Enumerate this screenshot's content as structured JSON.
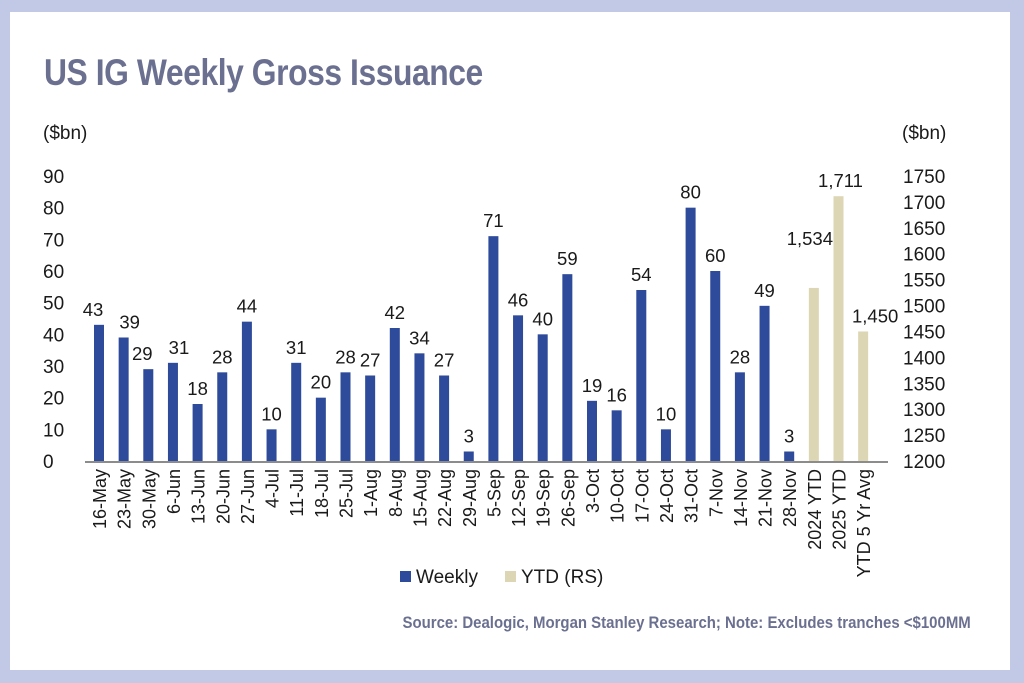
{
  "header": {
    "title": "US IG Weekly Gross Issuance"
  },
  "footer": {
    "source": "Source: Dealogic, Morgan Stanley Research; Note: Excludes tranches <$100MM"
  },
  "colors": {
    "weekly": "#2e4a9a",
    "ytd": "#ddd6b4",
    "title": "#6b7090",
    "frame": "#c2c9e6",
    "axis": "#8c8c8c"
  },
  "chart_data": {
    "type": "bar",
    "title": "US IG Weekly Gross Issuance",
    "left_axis": {
      "label": "($bn)",
      "ylim": [
        0,
        90
      ],
      "ticks": [
        0,
        10,
        20,
        30,
        40,
        50,
        60,
        70,
        80,
        90
      ]
    },
    "right_axis": {
      "label": "($bn)",
      "ylim": [
        1200,
        1750
      ],
      "ticks": [
        1200,
        1250,
        1300,
        1350,
        1400,
        1450,
        1500,
        1550,
        1600,
        1650,
        1700,
        1750
      ]
    },
    "grid": false,
    "legend_position": "bottom-center",
    "series": [
      {
        "name": "Weekly",
        "axis": "left",
        "categories": [
          "16-May",
          "23-May",
          "30-May",
          "6-Jun",
          "13-Jun",
          "20-Jun",
          "27-Jun",
          "4-Jul",
          "11-Jul",
          "18-Jul",
          "25-Jul",
          "1-Aug",
          "8-Aug",
          "15-Aug",
          "22-Aug",
          "29-Aug",
          "5-Sep",
          "12-Sep",
          "19-Sep",
          "26-Sep",
          "3-Oct",
          "10-Oct",
          "17-Oct",
          "24-Oct",
          "31-Oct",
          "7-Nov",
          "14-Nov",
          "21-Nov",
          "28-Nov"
        ],
        "values": [
          43,
          39,
          29,
          31,
          18,
          28,
          44,
          10,
          31,
          20,
          28,
          27,
          42,
          34,
          27,
          3,
          71,
          46,
          40,
          59,
          19,
          16,
          54,
          10,
          80,
          60,
          28,
          49,
          3
        ],
        "labels": [
          "43",
          "39",
          "29",
          "31",
          "18",
          "28",
          "44",
          "10",
          "31",
          "20",
          "28",
          "27",
          "42",
          "34",
          "27",
          "3",
          "71",
          "46",
          "40",
          "59",
          "19",
          "16",
          "54",
          "10",
          "80",
          "60",
          "28",
          "49",
          "3"
        ]
      },
      {
        "name": "YTD (RS)",
        "axis": "right",
        "categories": [
          "2024 YTD",
          "2025 YTD",
          "YTD 5 Yr Avg"
        ],
        "values": [
          1534,
          1711,
          1450
        ],
        "labels": [
          "1,534",
          "1,711",
          "1,450"
        ]
      }
    ],
    "legend": [
      "Weekly",
      "YTD (RS)"
    ]
  }
}
